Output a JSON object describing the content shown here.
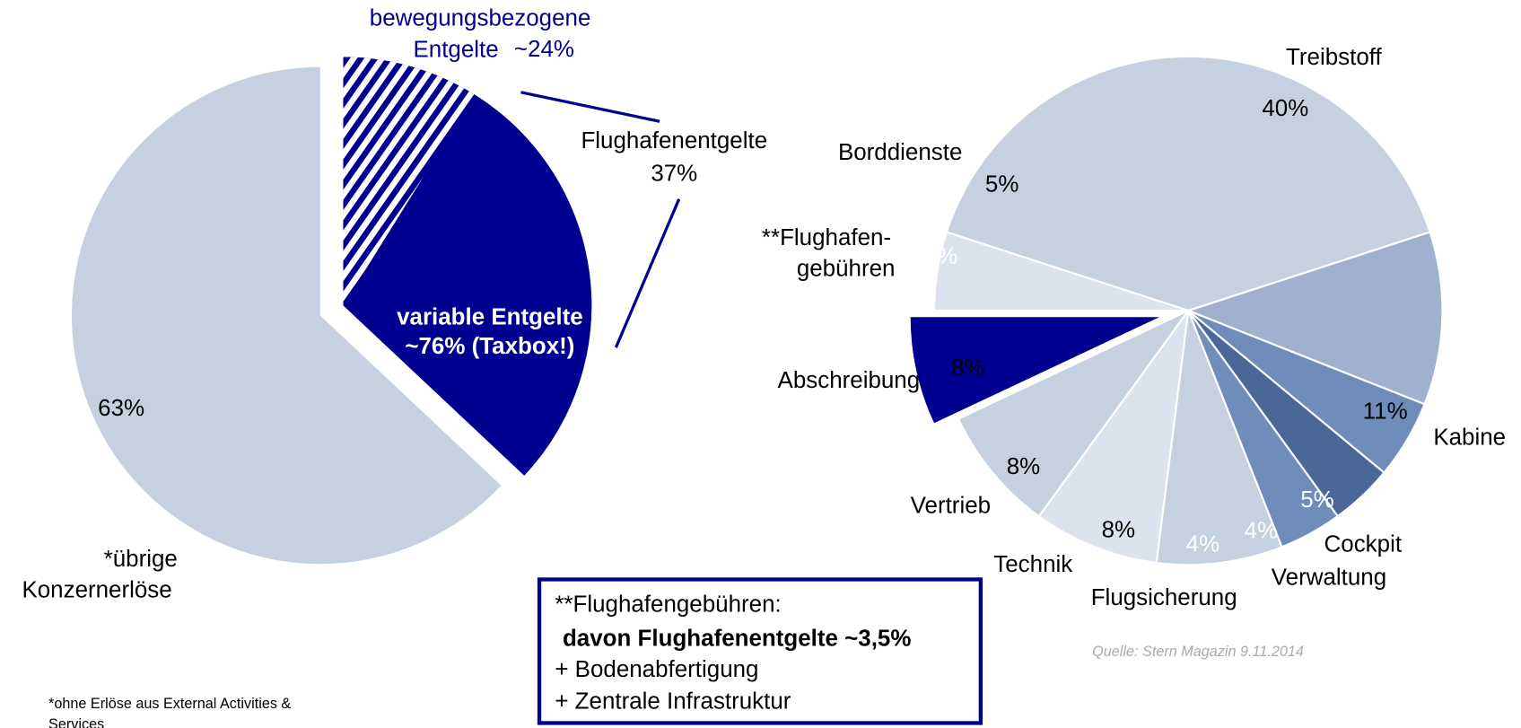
{
  "chart_data": [
    {
      "type": "pie",
      "categories": [
        "*übrige\nKonzernerlöse",
        "Flughafenentgelte"
      ],
      "values": [
        63,
        37
      ],
      "value_labels": [
        "63%",
        "37%"
      ],
      "colors": [
        "#c5d0e0",
        "#000090"
      ],
      "explode": [
        false,
        true
      ],
      "breakdown": {
        "categories": [
          "bewegungsbezogene\nEntgelte",
          "variable Entgelte"
        ],
        "values": [
          24,
          76
        ],
        "value_labels": [
          "~24%",
          "~76% (Taxbox!)"
        ],
        "colors": [
          "#000090",
          "#000090"
        ]
      }
    },
    {
      "type": "pie",
      "categories": [
        "Treibstoff",
        "Kabine",
        "Cockpit",
        "Verwaltung",
        "Flugsicherung",
        "Technik",
        "Vertrieb",
        "Abschreibung",
        "**Flughafen-\ngebühren",
        "Borddienste"
      ],
      "values": [
        40,
        11,
        5,
        4,
        4,
        8,
        8,
        8,
        7,
        5
      ],
      "value_labels": [
        "40%",
        "11%",
        "5%",
        "4%",
        "4%",
        "8%",
        "8%",
        "8%",
        "7%",
        "5%"
      ],
      "colors": [
        "#c5d0e0",
        "#9fb1cf",
        "#6f8cbb",
        "#4a6798",
        "#6f8cbb",
        "#c5d0e0",
        "#dde3ee",
        "#c5d0e0",
        "#000090",
        "#dde3ee"
      ],
      "explode": [
        false,
        false,
        false,
        false,
        false,
        false,
        false,
        false,
        true,
        false
      ]
    }
  ],
  "box": {
    "lines": [
      "**Flughafengebühren:",
      "davon Flughafenentgelte ~3,5%",
      "+ Bodenabfertigung",
      "+ Zentrale Infrastruktur"
    ]
  },
  "source": "Quelle: Stern Magazin 9.11.2014",
  "footnote": [
    "*ohne Erlöse aus External Activities &",
    "Services"
  ]
}
